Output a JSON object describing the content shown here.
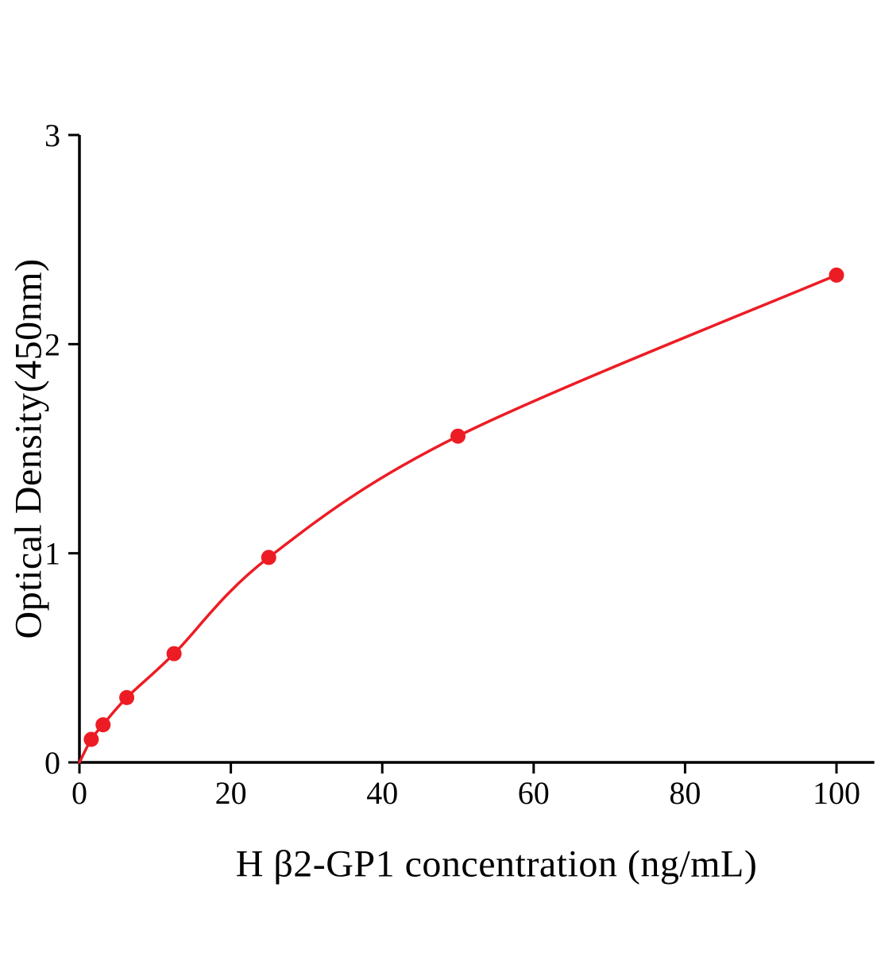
{
  "chart_data": {
    "type": "scatter",
    "title": "",
    "xlabel": "H β2-GP1 concentration (ng/mL)",
    "ylabel": "Optical Density(450nm)",
    "x": [
      1.56,
      3.12,
      6.25,
      12.5,
      25,
      50,
      100
    ],
    "y": [
      0.11,
      0.18,
      0.31,
      0.52,
      0.98,
      1.56,
      2.33
    ],
    "curve_starts_at_origin": true,
    "xlim": [
      0,
      105
    ],
    "ylim": [
      0,
      3
    ],
    "xticks": [
      0,
      20,
      40,
      60,
      80,
      100
    ],
    "yticks": [
      0,
      1,
      2,
      3
    ],
    "grid": false,
    "legend": "none",
    "marker_color": "#ed1c24",
    "line_color": "#ed1c24",
    "axis_color": "#000000",
    "background_color": "#ffffff"
  }
}
